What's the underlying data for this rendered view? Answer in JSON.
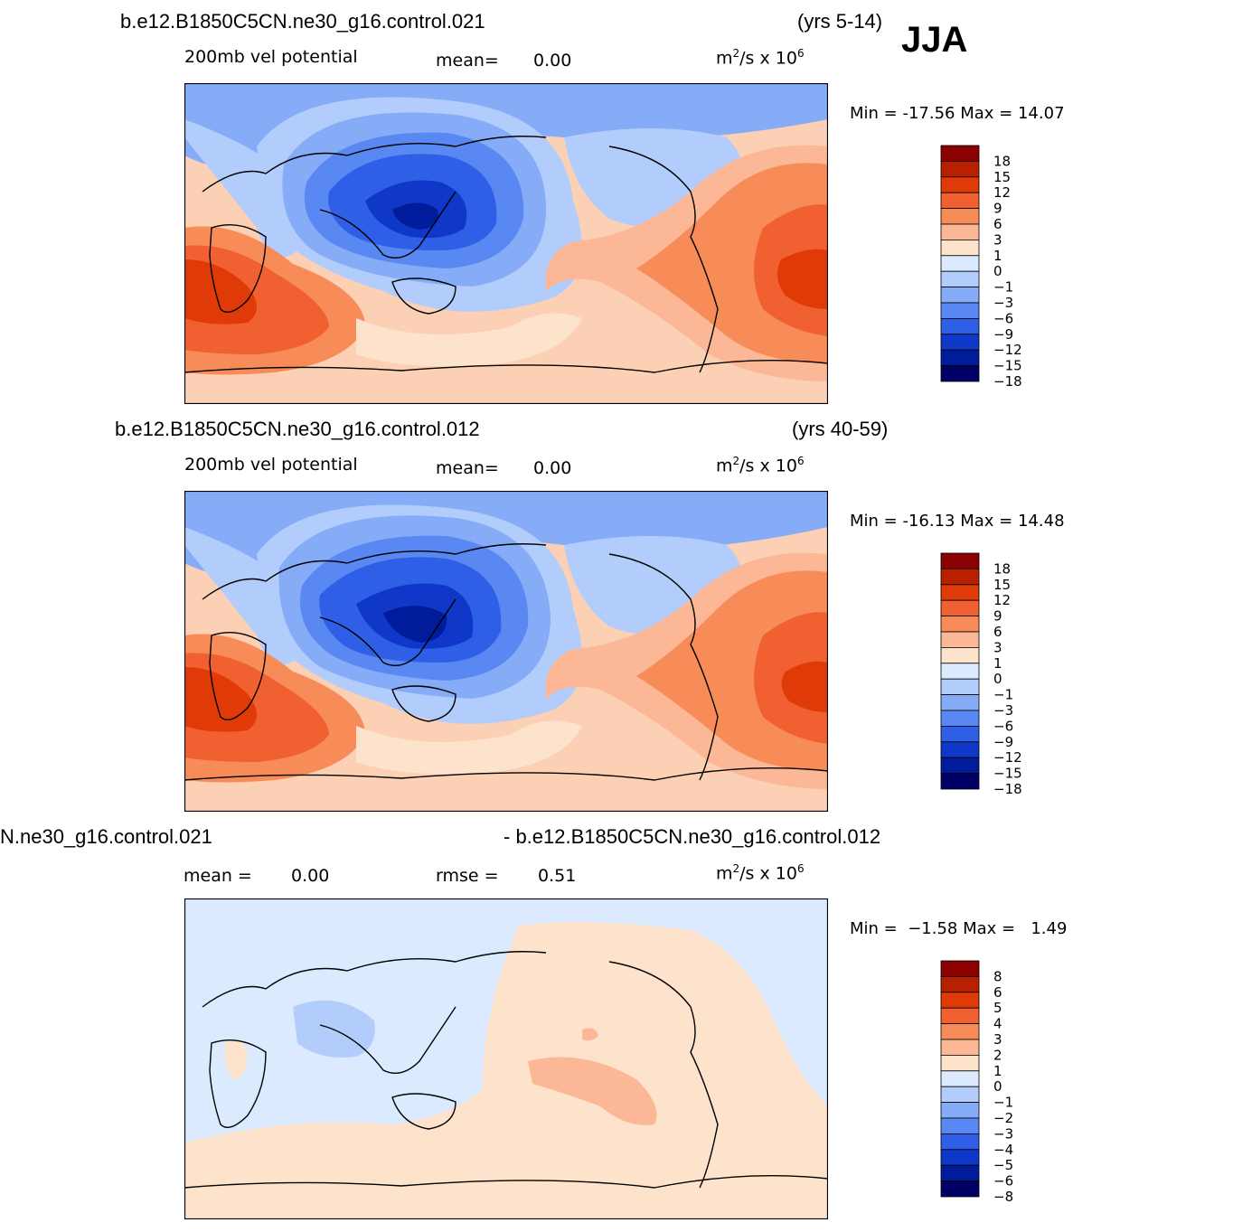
{
  "season": "JJA",
  "panels": [
    {
      "case": "b.e12.B1850C5CN.ne30_g16.control.021",
      "years": "(yrs 5-14)",
      "field": "200mb vel potential",
      "stat_label": "mean=",
      "stat_value": "0.00",
      "units_base": "m",
      "units_exp": "2",
      "units_rest": "/s x 10",
      "units_pow": "6",
      "min_label": "Min = ",
      "min_value": "-17.56",
      "max_label": "Max = ",
      "max_value": "14.07",
      "colorbar": {
        "colors": [
          "#8b0000",
          "#b82000",
          "#e03a08",
          "#f06030",
          "#f88c58",
          "#fcb896",
          "#fde3cc",
          "#dceaff",
          "#b2cdfc",
          "#86acf8",
          "#5a88f2",
          "#2f5fe6",
          "#1038c8",
          "#001c9a",
          "#000066"
        ],
        "labels": [
          "18",
          "15",
          "12",
          "9",
          "6",
          "3",
          "1",
          "0",
          "−1",
          "−3",
          "−6",
          "−9",
          "−12",
          "−15",
          "−18"
        ]
      }
    },
    {
      "case": "b.e12.B1850C5CN.ne30_g16.control.012",
      "years": "(yrs 40-59)",
      "field": "200mb vel potential",
      "stat_label": "mean=",
      "stat_value": "0.00",
      "units_base": "m",
      "units_exp": "2",
      "units_rest": "/s x 10",
      "units_pow": "6",
      "min_label": "Min = ",
      "min_value": "-16.13",
      "max_label": "Max = ",
      "max_value": "14.48",
      "colorbar": {
        "colors": [
          "#8b0000",
          "#b82000",
          "#e03a08",
          "#f06030",
          "#f88c58",
          "#fcb896",
          "#fde3cc",
          "#dceaff",
          "#b2cdfc",
          "#86acf8",
          "#5a88f2",
          "#2f5fe6",
          "#1038c8",
          "#001c9a",
          "#000066"
        ],
        "labels": [
          "18",
          "15",
          "12",
          "9",
          "6",
          "3",
          "1",
          "0",
          "−1",
          "−3",
          "−6",
          "−9",
          "−12",
          "−15",
          "−18"
        ]
      }
    },
    {
      "case_left": "N.ne30_g16.control.021",
      "case_right": "- b.e12.B1850C5CN.ne30_g16.control.012",
      "mean_label": "mean = ",
      "mean_value": "0.00",
      "rmse_label": "rmse = ",
      "rmse_value": "0.51",
      "units_base": "m",
      "units_exp": "2",
      "units_rest": "/s x 10",
      "units_pow": "6",
      "min_label": "Min = ",
      "min_value": "−1.58",
      "max_label": "Max = ",
      "max_value": "1.49",
      "colorbar": {
        "colors": [
          "#8b0000",
          "#b82000",
          "#e03a08",
          "#f06030",
          "#f88c58",
          "#fcb896",
          "#fde3cc",
          "#dceaff",
          "#b2cdfc",
          "#86acf8",
          "#5a88f2",
          "#2f5fe6",
          "#1038c8",
          "#001c9a",
          "#000066"
        ],
        "labels": [
          "8",
          "6",
          "5",
          "4",
          "3",
          "2",
          "1",
          "0",
          "−1",
          "−2",
          "−3",
          "−4",
          "−5",
          "−6",
          "−8"
        ]
      }
    }
  ]
}
